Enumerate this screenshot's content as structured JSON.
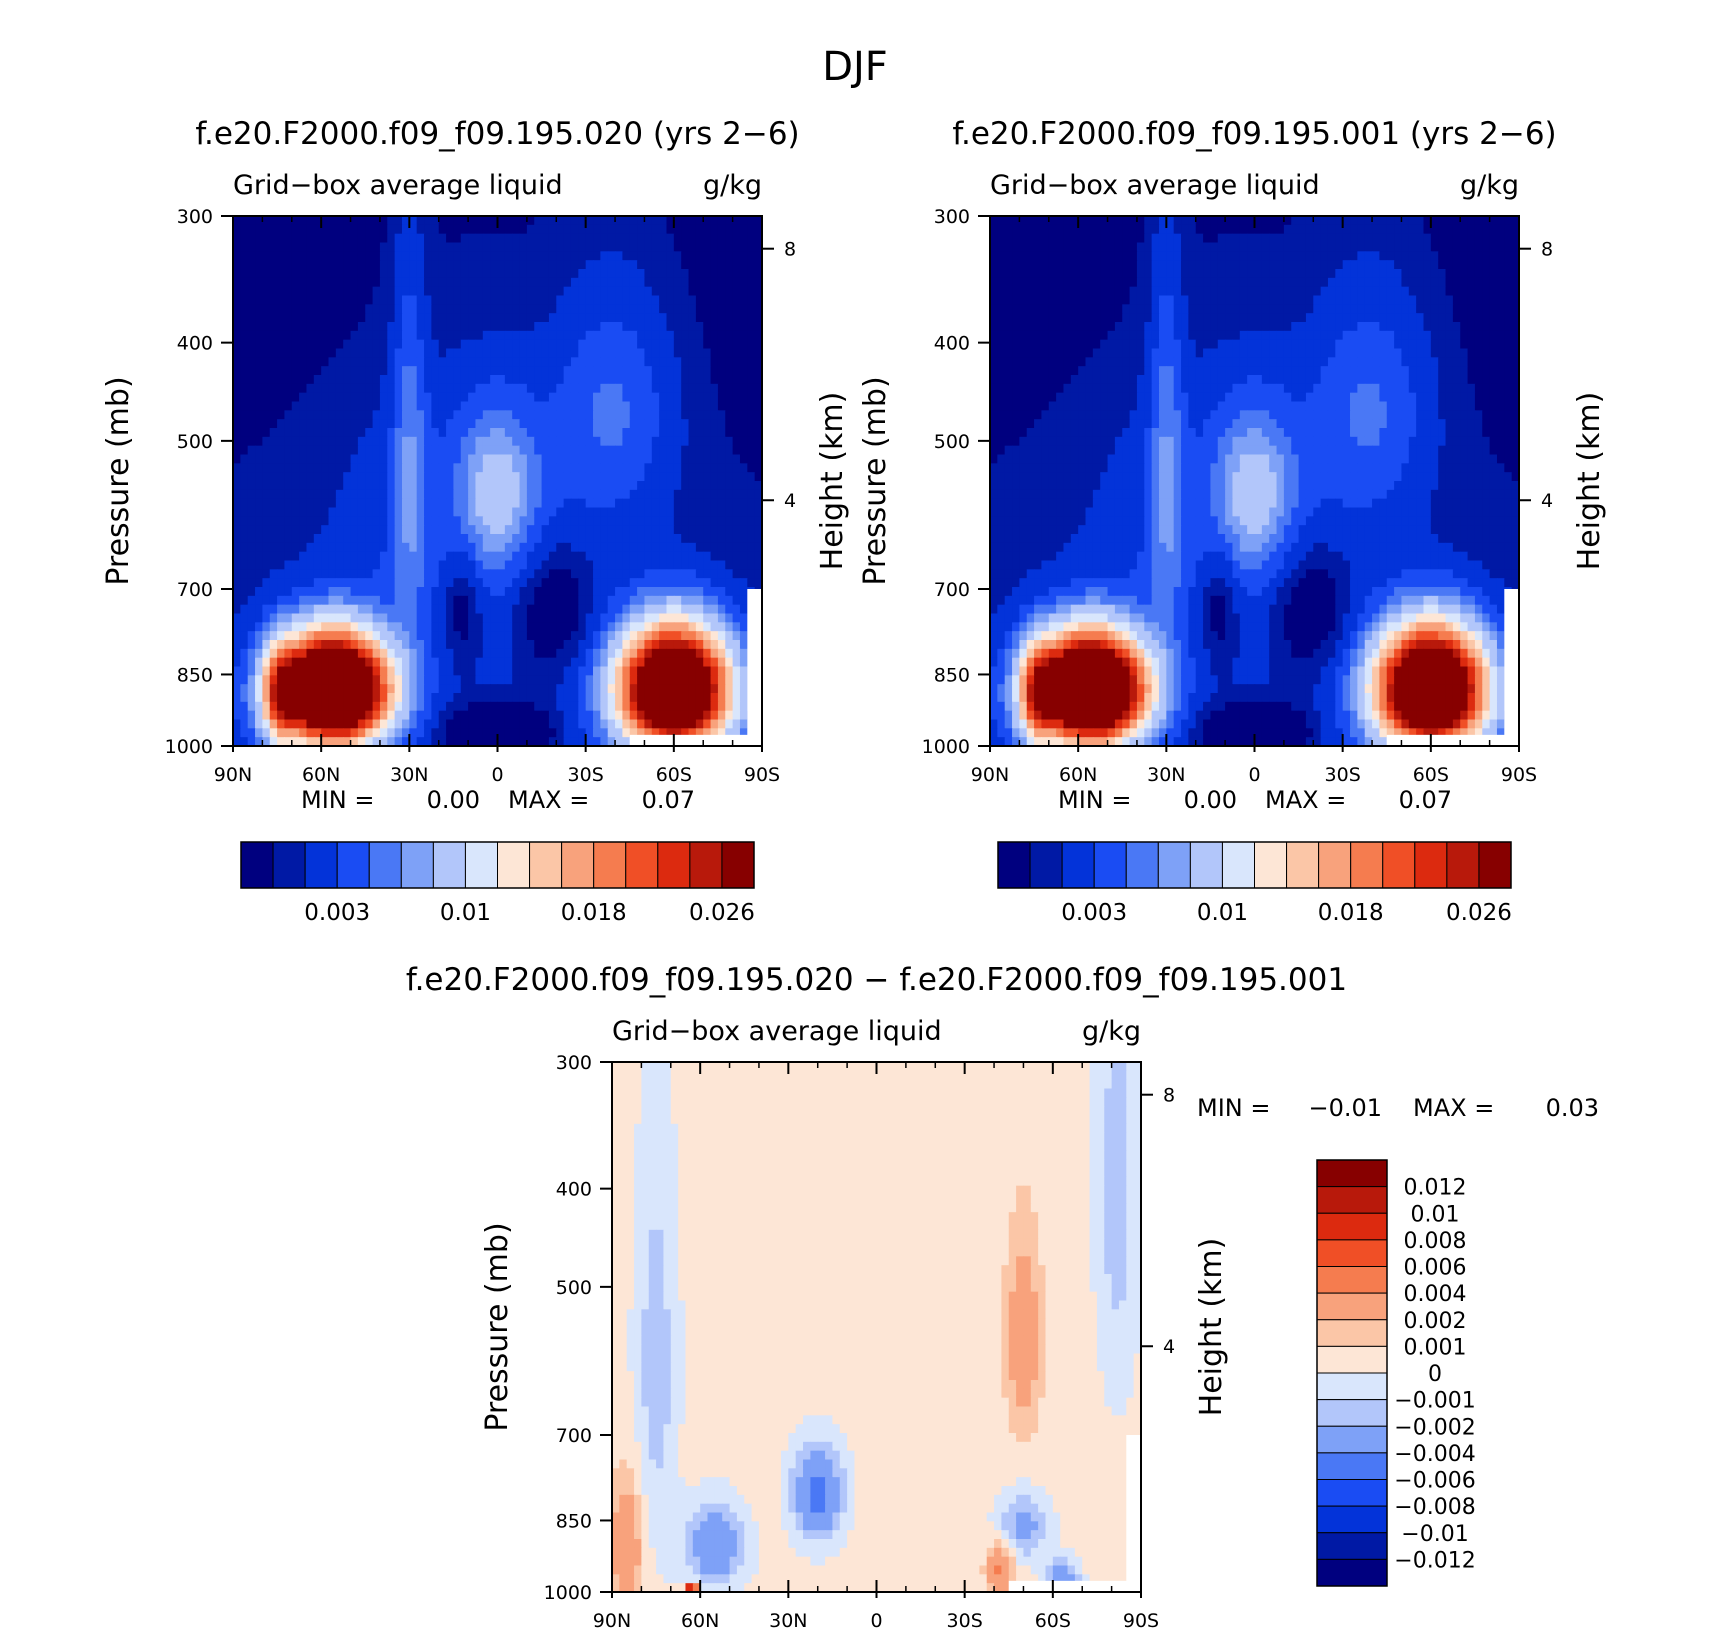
{
  "figure": {
    "title": "DJF"
  },
  "colors": {
    "abs_scale": [
      "#00007f",
      "#0019a5",
      "#0333d9",
      "#1a4cf3",
      "#4a78f5",
      "#7ea1f7",
      "#b2c6fa",
      "#d9e6fc",
      "#fde6d6",
      "#fbc6a7",
      "#f8a27c",
      "#f57c4f",
      "#f04f26",
      "#dc2a0f",
      "#b8190b",
      "#870000"
    ],
    "diff_scale": [
      "#00007f",
      "#0019a5",
      "#0333d9",
      "#1a4cf3",
      "#4a78f5",
      "#7ea1f7",
      "#b2c6fa",
      "#d9e6fc",
      "#fde6d6",
      "#fbc6a7",
      "#f8a27c",
      "#f57c4f",
      "#f04f26",
      "#dc2a0f",
      "#b8190b",
      "#870000"
    ]
  },
  "chart_data": [
    {
      "type": "heatmap",
      "title": "f.e20.F2000.f09_f09.195.020 (yrs 2−6)",
      "left_label": "Grid−box average liquid",
      "units": "g/kg",
      "ylabel": "Pressure (mb)",
      "right_label": "Height (km)",
      "x_ticks": [
        "90N",
        "60N",
        "30N",
        "0",
        "30S",
        "60S",
        "90S"
      ],
      "x_values": [
        -90,
        -60,
        -30,
        0,
        30,
        60,
        90
      ],
      "xlim": [
        -90,
        90
      ],
      "y_ticks": [
        "300",
        "400",
        "500",
        "700",
        "850",
        "1000"
      ],
      "y_values": [
        300,
        400,
        500,
        700,
        850,
        1000
      ],
      "ylim": [
        300,
        1000
      ],
      "height_ticks": [
        "8",
        "4"
      ],
      "height_values": [
        8,
        4
      ],
      "stats": {
        "min_label": "MIN =",
        "min_value": "0.00",
        "max_label": "MAX =",
        "max_value": "0.07"
      },
      "colorbar": {
        "levels": 16,
        "tick_labels": [
          "0.003",
          "0.01",
          "0.018",
          "0.026"
        ]
      }
    },
    {
      "type": "heatmap",
      "title": "f.e20.F2000.f09_f09.195.001 (yrs 2−6)",
      "left_label": "Grid−box average liquid",
      "units": "g/kg",
      "ylabel": "Pressure (mb)",
      "right_label": "Height (km)",
      "x_ticks": [
        "90N",
        "60N",
        "30N",
        "0",
        "30S",
        "60S",
        "90S"
      ],
      "x_values": [
        -90,
        -60,
        -30,
        0,
        30,
        60,
        90
      ],
      "xlim": [
        -90,
        90
      ],
      "y_ticks": [
        "300",
        "400",
        "500",
        "700",
        "850",
        "1000"
      ],
      "y_values": [
        300,
        400,
        500,
        700,
        850,
        1000
      ],
      "ylim": [
        300,
        1000
      ],
      "height_ticks": [
        "8",
        "4"
      ],
      "height_values": [
        8,
        4
      ],
      "stats": {
        "min_label": "MIN =",
        "min_value": "0.00",
        "max_label": "MAX =",
        "max_value": "0.07"
      },
      "colorbar": {
        "levels": 16,
        "tick_labels": [
          "0.003",
          "0.01",
          "0.018",
          "0.026"
        ]
      }
    },
    {
      "type": "heatmap",
      "title": "f.e20.F2000.f09_f09.195.020 − f.e20.F2000.f09_f09.195.001",
      "left_label": "Grid−box average liquid",
      "units": "g/kg",
      "ylabel": "Pressure (mb)",
      "right_label": "Height (km)",
      "x_ticks": [
        "90N",
        "60N",
        "30N",
        "0",
        "30S",
        "60S",
        "90S"
      ],
      "x_values": [
        -90,
        -60,
        -30,
        0,
        30,
        60,
        90
      ],
      "xlim": [
        -90,
        90
      ],
      "y_ticks": [
        "300",
        "400",
        "500",
        "700",
        "850",
        "1000"
      ],
      "y_values": [
        300,
        400,
        500,
        700,
        850,
        1000
      ],
      "ylim": [
        300,
        1000
      ],
      "height_ticks": [
        "8",
        "4"
      ],
      "height_values": [
        8,
        4
      ],
      "stats": {
        "min_label": "MIN =",
        "min_value": "−0.01",
        "max_label": "MAX =",
        "max_value": "0.03"
      },
      "colorbar": {
        "levels": 16,
        "tick_labels": [
          "0.012",
          "0.01",
          "0.008",
          "0.006",
          "0.004",
          "0.002",
          "0.001",
          "0",
          "−0.001",
          "−0.002",
          "−0.004",
          "−0.006",
          "−0.008",
          "−0.01",
          "−0.012"
        ]
      }
    }
  ]
}
